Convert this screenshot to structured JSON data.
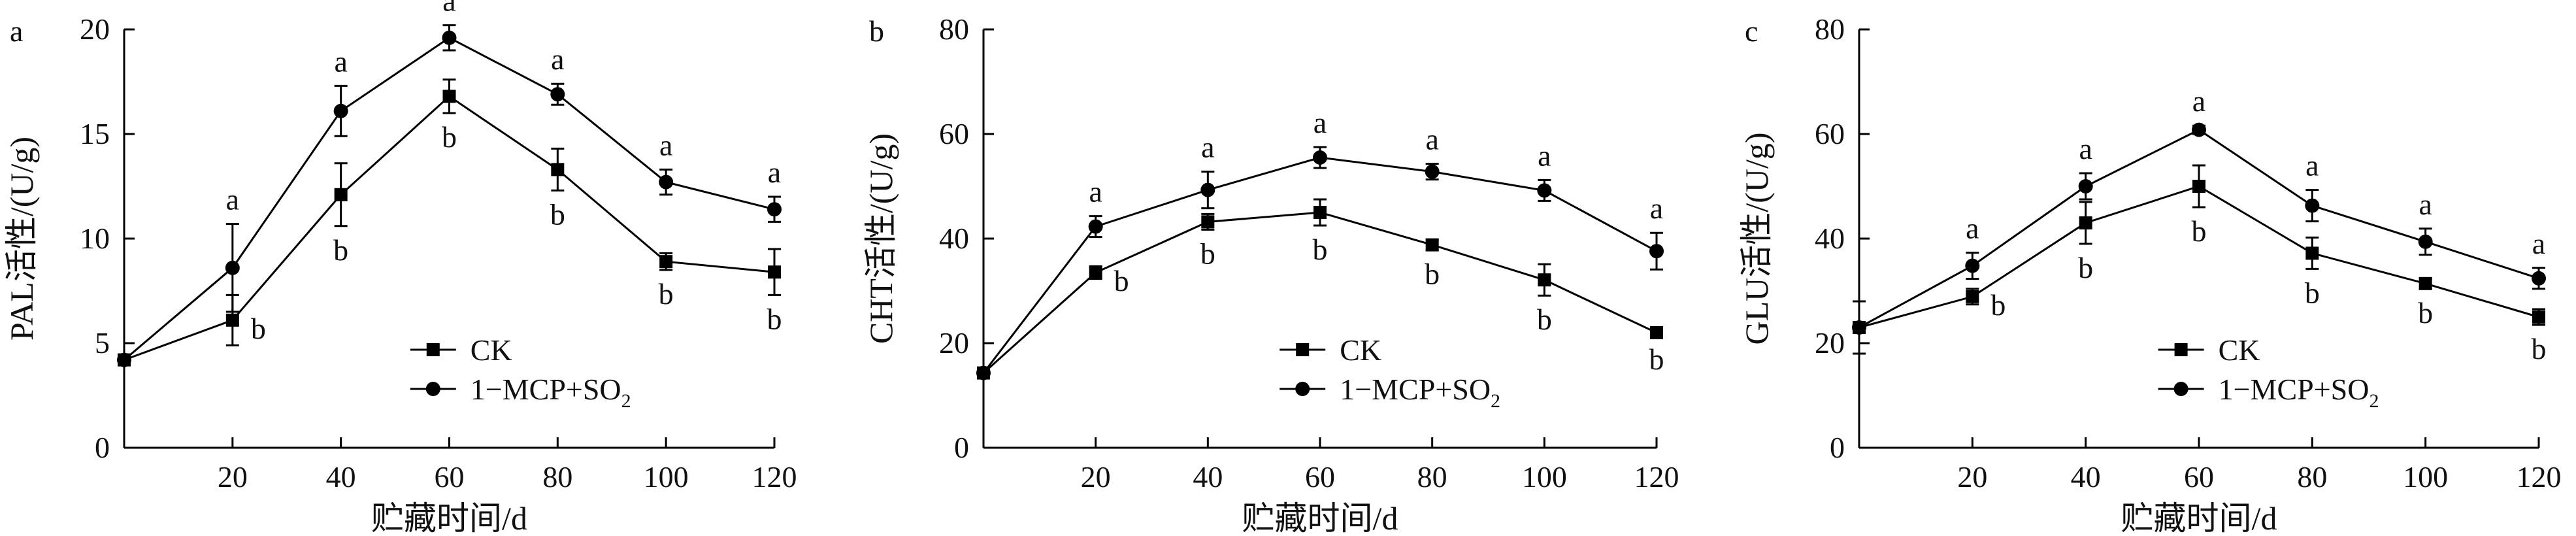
{
  "chart_data": [
    {
      "type": "line",
      "panel": "a",
      "xlabel": "贮藏时间/d",
      "ylabel": "PAL活性/(U/g)",
      "xlim": [
        0,
        120
      ],
      "ylim": [
        0,
        20
      ],
      "x_ticks": [
        20,
        40,
        60,
        80,
        100,
        120
      ],
      "y_ticks": [
        0,
        5,
        10,
        15,
        20
      ],
      "legend_position": "lower-center",
      "x": [
        0,
        20,
        40,
        60,
        80,
        100,
        120
      ],
      "series": [
        {
          "name": "CK",
          "marker": "square",
          "values": [
            4.2,
            6.1,
            12.1,
            16.8,
            13.3,
            8.9,
            8.4
          ],
          "errors": [
            0.2,
            1.2,
            1.5,
            0.8,
            1.0,
            0.4,
            1.1
          ],
          "labels": [
            "",
            "b",
            "b",
            "b",
            "b",
            "b",
            "b"
          ]
        },
        {
          "name": "1−MCP+SO",
          "name_subscript": "2",
          "marker": "circle",
          "values": [
            4.2,
            8.6,
            16.1,
            19.6,
            16.9,
            12.7,
            11.4
          ],
          "errors": [
            0.2,
            2.1,
            1.2,
            0.6,
            0.5,
            0.6,
            0.6
          ],
          "labels": [
            "",
            "a",
            "a",
            "a",
            "a",
            "a",
            "a"
          ]
        }
      ]
    },
    {
      "type": "line",
      "panel": "b",
      "xlabel": "贮藏时间/d",
      "ylabel": "CHT活性/(U/g)",
      "xlim": [
        0,
        120
      ],
      "ylim": [
        0,
        80
      ],
      "x_ticks": [
        20,
        40,
        60,
        80,
        100,
        120
      ],
      "y_ticks": [
        0,
        20,
        40,
        60,
        80
      ],
      "legend_position": "lower-center",
      "x": [
        0,
        20,
        40,
        60,
        80,
        100,
        120
      ],
      "series": [
        {
          "name": "CK",
          "marker": "square",
          "values": [
            14.3,
            33.5,
            43.2,
            45.0,
            38.8,
            32.1,
            22.0
          ],
          "errors": [
            0.5,
            1.2,
            1.5,
            2.5,
            1.0,
            3.0,
            0.5
          ],
          "labels": [
            "",
            "b",
            "b",
            "b",
            "b",
            "b",
            "b"
          ]
        },
        {
          "name": "1−MCP+SO",
          "name_subscript": "2",
          "marker": "circle",
          "values": [
            14.3,
            42.3,
            49.3,
            55.5,
            52.8,
            49.2,
            37.6
          ],
          "errors": [
            0.5,
            2.0,
            3.5,
            2.0,
            1.5,
            2.0,
            3.5
          ],
          "labels": [
            "",
            "a",
            "a",
            "a",
            "a",
            "a",
            "a"
          ]
        }
      ]
    },
    {
      "type": "line",
      "panel": "c",
      "xlabel": "贮藏时间/d",
      "ylabel": "GLU活性/(U/g)",
      "xlim": [
        0,
        120
      ],
      "ylim": [
        0,
        80
      ],
      "x_ticks": [
        20,
        40,
        60,
        80,
        100,
        120
      ],
      "y_ticks": [
        0,
        20,
        40,
        60,
        80
      ],
      "legend_position": "lower-center",
      "x": [
        0,
        20,
        40,
        60,
        80,
        100,
        120
      ],
      "series": [
        {
          "name": "CK",
          "marker": "square",
          "values": [
            23.0,
            28.9,
            43.0,
            50.0,
            37.2,
            31.4,
            25.0
          ],
          "errors": [
            5.0,
            1.5,
            4.0,
            4.0,
            3.0,
            1.0,
            1.5
          ],
          "labels": [
            "",
            "b",
            "b",
            "b",
            "b",
            "b",
            "b"
          ]
        },
        {
          "name": "1−MCP+SO",
          "name_subscript": "2",
          "marker": "circle",
          "values": [
            23.0,
            34.8,
            50.0,
            60.8,
            46.3,
            39.4,
            32.4
          ],
          "errors": [
            5.0,
            2.5,
            2.5,
            0.8,
            3.0,
            2.5,
            2.0
          ],
          "labels": [
            "",
            "a",
            "a",
            "a",
            "a",
            "a",
            "a"
          ]
        }
      ]
    }
  ]
}
